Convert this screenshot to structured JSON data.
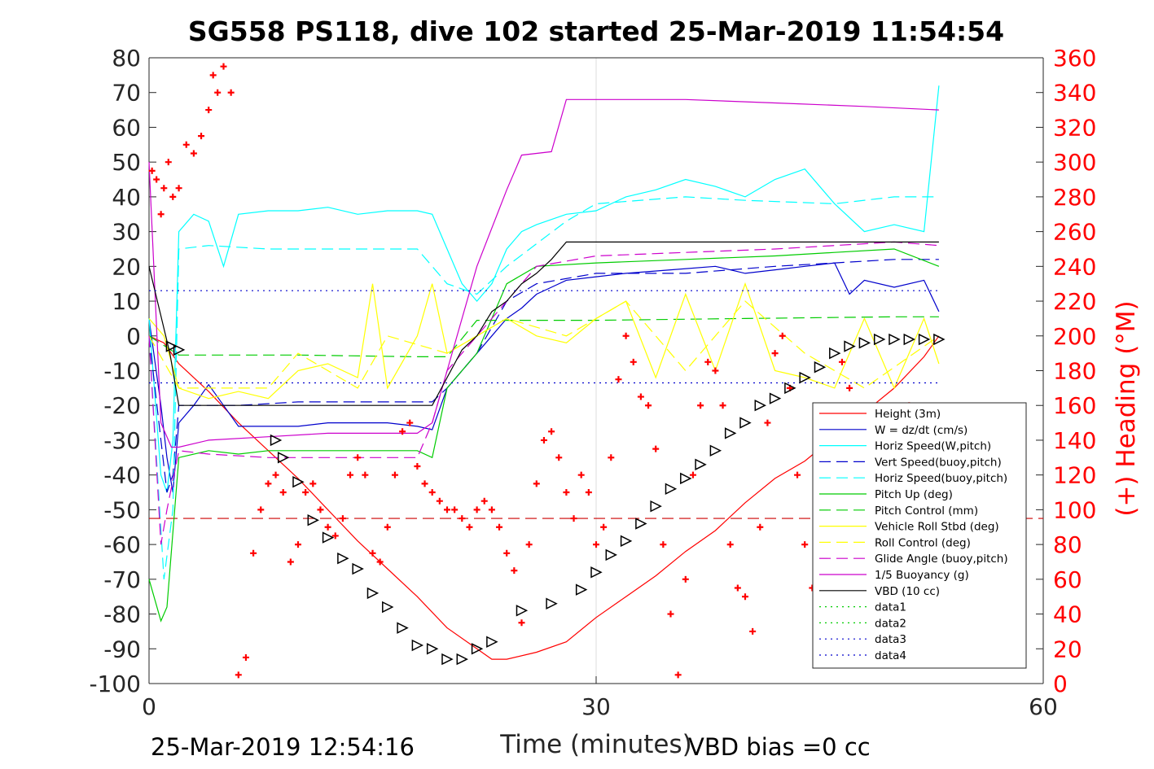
{
  "chart_data": {
    "type": "line",
    "title": "SG558 PS118, dive 102 started 25-Mar-2019 11:54:54",
    "xlabel": "Time (minutes)",
    "ylabel_right": "(+) Heading (°M)",
    "xlim": [
      0,
      60
    ],
    "ylim": [
      -100,
      80
    ],
    "ylim_right": [
      0,
      360
    ],
    "x_ticks": [
      "0",
      "30",
      "60"
    ],
    "y_ticks": [
      "80",
      "70",
      "60",
      "50",
      "40",
      "30",
      "20",
      "10",
      "0",
      "-10",
      "-20",
      "-30",
      "-40",
      "-50",
      "-60",
      "-70",
      "-80",
      "-90",
      "-100"
    ],
    "y_ticks_right": [
      "360",
      "340",
      "320",
      "300",
      "280",
      "260",
      "240",
      "220",
      "200",
      "180",
      "160",
      "140",
      "120",
      "100",
      "80",
      "60",
      "40",
      "20",
      "0"
    ],
    "grid_x": [
      30
    ],
    "legend_position": "lower-right",
    "footer_left": "25-Mar-2019 12:54:16",
    "footer_right": "VBD bias =0 cc",
    "series": [
      {
        "name": "Height (3m)",
        "color": "#ff0000",
        "style": "solid",
        "x": [
          0,
          1,
          2,
          4,
          6,
          8,
          10,
          12,
          14,
          16,
          18,
          20,
          22,
          23,
          24,
          26,
          28,
          30,
          32,
          34,
          36,
          38,
          40,
          42,
          44,
          46,
          48,
          50,
          52,
          53
        ],
        "y": [
          0,
          -2,
          -8,
          -16,
          -25,
          -33,
          -41,
          -50,
          -59,
          -67,
          -75,
          -84,
          -90,
          -93,
          -93,
          -91,
          -88,
          -81,
          -75,
          -69,
          -62,
          -56,
          -48,
          -41,
          -36,
          -29,
          -22,
          -15,
          -6,
          0
        ]
      },
      {
        "name": "W = dz/dt (cm/s)",
        "color": "#0000cc",
        "style": "solid",
        "x": [
          0,
          0.8,
          1.2,
          1.6,
          2,
          3,
          4,
          5,
          6,
          8,
          10,
          12,
          14,
          16,
          18,
          19,
          20,
          21,
          22,
          23,
          24,
          25,
          26,
          27,
          28,
          30,
          32,
          35,
          38,
          40,
          42,
          44,
          46,
          47,
          48,
          50,
          52,
          53
        ],
        "y": [
          5,
          -20,
          -35,
          -45,
          -25,
          -20,
          -14,
          -20,
          -26,
          -26,
          -26,
          -25,
          -25,
          -25,
          -26,
          -27,
          -15,
          -10,
          -5,
          0,
          5,
          8,
          12,
          14,
          16,
          17,
          18,
          19,
          20,
          18,
          19,
          20,
          21,
          12,
          16,
          14,
          16,
          7
        ]
      },
      {
        "name": "Horiz Speed(W,pitch)",
        "color": "#00ffff",
        "style": "solid",
        "x": [
          0,
          0.8,
          1.2,
          1.6,
          2,
          3,
          4,
          5,
          6,
          8,
          10,
          12,
          14,
          16,
          18,
          19,
          20,
          21,
          22,
          23,
          24,
          25,
          26,
          28,
          30,
          32,
          34,
          36,
          38,
          40,
          42,
          44,
          46,
          48,
          50,
          52,
          53
        ],
        "y": [
          5,
          -40,
          -45,
          -30,
          30,
          35,
          33,
          20,
          35,
          36,
          36,
          37,
          35,
          36,
          36,
          35,
          25,
          15,
          10,
          15,
          25,
          30,
          32,
          35,
          36,
          40,
          42,
          45,
          43,
          40,
          45,
          48,
          38,
          30,
          32,
          30,
          72
        ]
      },
      {
        "name": "Vert Speed(buoy,pitch)",
        "color": "#0000cc",
        "style": "dashed",
        "x": [
          0,
          0.8,
          1.2,
          1.6,
          2,
          4,
          6,
          10,
          14,
          18,
          19,
          20,
          22,
          24,
          26,
          30,
          36,
          42,
          46,
          50,
          53
        ],
        "y": [
          0,
          -30,
          -45,
          -40,
          -20,
          -20,
          -20,
          -19,
          -19,
          -19,
          -19,
          -15,
          -5,
          10,
          15,
          18,
          18,
          20,
          21,
          22,
          22
        ]
      },
      {
        "name": "Horiz Speed(buoy,pitch)",
        "color": "#00ffff",
        "style": "dashed",
        "x": [
          0,
          1,
          1.6,
          2,
          4,
          8,
          12,
          16,
          18,
          19,
          20,
          22,
          24,
          28,
          30,
          36,
          40,
          46,
          50,
          53
        ],
        "y": [
          0,
          -70,
          -50,
          25,
          26,
          25,
          25,
          25,
          25,
          20,
          15,
          12,
          20,
          33,
          38,
          40,
          39,
          38,
          40,
          40
        ]
      },
      {
        "name": "Pitch Up (deg)",
        "color": "#00cc00",
        "style": "solid",
        "x": [
          0,
          0.8,
          1.2,
          2,
          4,
          6,
          8,
          10,
          14,
          18,
          19,
          20,
          22,
          24,
          26,
          30,
          36,
          42,
          46,
          50,
          53
        ],
        "y": [
          -70,
          -82,
          -78,
          -35,
          -33,
          -34,
          -33,
          -33,
          -33,
          -33,
          -35,
          -15,
          -5,
          15,
          20,
          21,
          22,
          23,
          24,
          25,
          20
        ]
      },
      {
        "name": "Pitch Control (mm)",
        "color": "#00cc00",
        "style": "dashed",
        "x": [
          0,
          2,
          10,
          18,
          20,
          22,
          24,
          30,
          40,
          50,
          53
        ],
        "y": [
          0,
          -5.5,
          -5.5,
          -6,
          -6,
          4.5,
          4.5,
          4.5,
          5,
          5.5,
          5.5
        ]
      },
      {
        "name": "Vehicle Roll Stbd (deg)",
        "color": "#ffff00",
        "style": "solid",
        "x": [
          0,
          1,
          2,
          4,
          6,
          8,
          10,
          12,
          14,
          15,
          16,
          18,
          19,
          20,
          22,
          24,
          26,
          28,
          30,
          32,
          34,
          36,
          38,
          40,
          42,
          44,
          46,
          48,
          50,
          52,
          53
        ],
        "y": [
          5,
          0,
          -15,
          -18,
          -16,
          -18,
          -10,
          -8,
          -12,
          15,
          -15,
          0,
          15,
          -5,
          0,
          5,
          0,
          -2,
          5,
          10,
          -12,
          12,
          -10,
          15,
          -10,
          -12,
          -15,
          5,
          -15,
          5,
          -8
        ]
      },
      {
        "name": "Roll Control (deg)",
        "color": "#ffff00",
        "style": "dashed",
        "x": [
          0,
          2,
          8,
          10,
          14,
          16,
          20,
          24,
          28,
          32,
          36,
          40,
          44,
          48,
          53
        ],
        "y": [
          0,
          -15,
          -15,
          -5,
          -15,
          0,
          -5,
          5,
          0,
          10,
          -10,
          10,
          -5,
          -15,
          0
        ]
      },
      {
        "name": "Glide Angle (buoy,pitch)",
        "color": "#cc00cc",
        "style": "dashed",
        "x": [
          0,
          0.8,
          1.2,
          2,
          4,
          8,
          12,
          18,
          19,
          20,
          22,
          24,
          26,
          30,
          36,
          42,
          46,
          50,
          53
        ],
        "y": [
          0,
          -60,
          -50,
          -33,
          -34,
          -35,
          -35,
          -35,
          -25,
          -10,
          0,
          10,
          20,
          23,
          24,
          25,
          26,
          27,
          26
        ]
      },
      {
        "name": "1/5 Buoyancy (g)",
        "color": "#cc00cc",
        "style": "solid",
        "x": [
          0,
          0.8,
          1.5,
          2,
          4,
          8,
          12,
          18,
          19,
          20,
          22,
          24,
          25,
          27,
          28,
          30,
          36,
          42,
          48,
          53
        ],
        "y": [
          50,
          -25,
          -32,
          -32,
          -30,
          -29,
          -28,
          -28,
          -25,
          -10,
          20,
          42,
          52,
          53,
          68,
          68,
          68,
          67,
          66,
          65
        ]
      },
      {
        "name": "VBD (10 cc)",
        "color": "#000000",
        "style": "solid",
        "x": [
          0,
          1.4,
          2,
          6,
          10,
          14,
          18,
          19,
          20,
          21,
          22,
          23,
          24,
          25,
          26,
          27,
          28,
          30,
          40,
          53
        ],
        "y": [
          20,
          -5,
          -20,
          -20,
          -20,
          -20,
          -20,
          -20,
          -12,
          -4,
          0,
          7,
          10,
          15,
          18,
          22,
          27,
          27,
          27,
          27
        ]
      },
      {
        "name": "data1",
        "color": "#00cc00",
        "style": "dotted",
        "x": [],
        "y": []
      },
      {
        "name": "data2",
        "color": "#00cc00",
        "style": "dotted",
        "x": [],
        "y": []
      },
      {
        "name": "data3",
        "color": "#0000cc",
        "style": "dotted",
        "x": [
          0,
          53
        ],
        "y": [
          13,
          13
        ]
      },
      {
        "name": "data4",
        "color": "#0000cc",
        "style": "dotted",
        "x": [
          0,
          53
        ],
        "y": [
          -13.5,
          -13.5
        ]
      }
    ],
    "reference_lines": [
      {
        "color": "#cc0000",
        "style": "dashed",
        "y": -52.5
      }
    ],
    "heading_points": {
      "color": "#ff0000",
      "marker": "+",
      "axis": "right",
      "x": [
        0.2,
        0.5,
        0.8,
        1.0,
        1.3,
        1.6,
        2.0,
        2.5,
        3.0,
        3.5,
        4.0,
        4.3,
        4.6,
        5.0,
        5.5,
        6.0,
        6.5,
        7.0,
        7.5,
        8.0,
        8.5,
        9.0,
        9.5,
        10.0,
        10.5,
        11.0,
        11.5,
        12.0,
        12.5,
        13.0,
        13.5,
        14.0,
        14.5,
        15.0,
        15.5,
        16.0,
        16.5,
        17.0,
        17.5,
        18.0,
        18.5,
        19.0,
        19.5,
        20.0,
        20.5,
        21.0,
        21.5,
        22.0,
        22.5,
        23.0,
        23.5,
        24.0,
        24.5,
        25.0,
        25.5,
        26.0,
        26.5,
        27.0,
        27.5,
        28.0,
        28.5,
        29.0,
        29.5,
        30.0,
        30.5,
        31.0,
        31.5,
        32.0,
        32.5,
        33.0,
        33.5,
        34.0,
        34.5,
        35.0,
        35.5,
        36.0,
        36.5,
        37.0,
        37.5,
        38.0,
        38.5,
        39.0,
        39.5,
        40.0,
        40.5,
        41.0,
        41.5,
        42.0,
        42.5,
        43.0,
        43.5,
        44.0,
        44.5,
        45.0,
        45.5,
        46.0,
        46.5,
        47.0,
        47.5,
        48.0,
        48.5,
        49.0,
        49.5,
        50.0,
        50.5,
        51.0
      ],
      "y": [
        295,
        290,
        270,
        285,
        300,
        280,
        285,
        310,
        305,
        315,
        330,
        350,
        340,
        355,
        340,
        5,
        15,
        75,
        100,
        115,
        120,
        110,
        70,
        80,
        110,
        115,
        100,
        90,
        85,
        95,
        120,
        130,
        120,
        75,
        70,
        90,
        120,
        145,
        150,
        125,
        115,
        110,
        105,
        100,
        100,
        95,
        90,
        100,
        105,
        100,
        90,
        75,
        65,
        35,
        80,
        115,
        140,
        145,
        130,
        110,
        95,
        120,
        110,
        80,
        90,
        130,
        175,
        200,
        185,
        165,
        160,
        135,
        80,
        40,
        5,
        60,
        120,
        160,
        185,
        180,
        160,
        80,
        55,
        50,
        30,
        90,
        150,
        190,
        200,
        170,
        120,
        80,
        55,
        35,
        20,
        140,
        185,
        170,
        130,
        90,
        60,
        40,
        25,
        80,
        120,
        160
      ]
    },
    "height_markers": {
      "color": "#000000",
      "marker": "triangle",
      "x": [
        1.5,
        2,
        8.5,
        9,
        10,
        11,
        12,
        13,
        14,
        15,
        16,
        17,
        18,
        19,
        20,
        21,
        22,
        23,
        25,
        27,
        29,
        30,
        31,
        32,
        33,
        34,
        35,
        36,
        37,
        38,
        39,
        40,
        41,
        42,
        43,
        44,
        45,
        46,
        47,
        48,
        49,
        50,
        51,
        52,
        53
      ],
      "y": [
        -3,
        -4,
        -30,
        -35,
        -42,
        -53,
        -58,
        -64,
        -67,
        -74,
        -78,
        -84,
        -89,
        -90,
        -93,
        -93,
        -90,
        -88,
        -79,
        -77,
        -73,
        -68,
        -63,
        -59,
        -54,
        -49,
        -44,
        -41,
        -37,
        -33,
        -28,
        -25,
        -20,
        -18,
        -15,
        -12,
        -9,
        -5,
        -3,
        -2,
        -1,
        -1,
        -1,
        -1,
        -1
      ]
    }
  }
}
